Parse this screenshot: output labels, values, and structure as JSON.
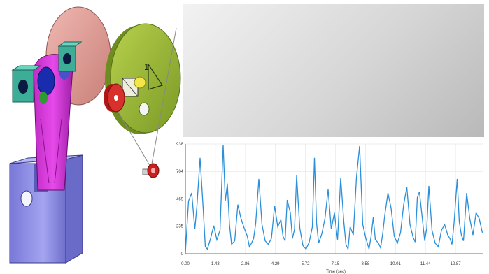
{
  "colors": {
    "line": "#2a8fd8",
    "disc_pink": "#e8a6a0",
    "disc_green": "#98b83a",
    "arm": "#d43ad8",
    "base": "#8e8ee8",
    "block": "#3cae98",
    "red": "#c8201e"
  },
  "mechanism": {
    "disc_label": "1"
  },
  "viewport": {},
  "chart_data": {
    "type": "line",
    "xlabel": "Time (sec)",
    "ylabel": "",
    "ylim": [
      0,
      938
    ],
    "xlim": [
      0,
      14.2
    ],
    "x_ticks": [
      "0.00",
      "1.43",
      "2.86",
      "4.29",
      "5.72",
      "7.15",
      "8.58",
      "10.01",
      "11.44",
      "12.87"
    ],
    "y_ticks": [
      "0",
      "235",
      "469",
      "704",
      "938"
    ],
    "grid": true,
    "series": [
      {
        "x": [
          0.0,
          0.15,
          0.3,
          0.45,
          0.55,
          0.7,
          0.85,
          0.95,
          1.05,
          1.2,
          1.35,
          1.5,
          1.65,
          1.8,
          1.9,
          2.0,
          2.1,
          2.2,
          2.35,
          2.5,
          2.65,
          2.8,
          2.95,
          3.05,
          3.15,
          3.25,
          3.35,
          3.5,
          3.65,
          3.8,
          3.95,
          4.1,
          4.25,
          4.4,
          4.55,
          4.65,
          4.75,
          4.85,
          5.0,
          5.1,
          5.2,
          5.3,
          5.45,
          5.6,
          5.75,
          5.9,
          6.05,
          6.15,
          6.25,
          6.35,
          6.5,
          6.65,
          6.8,
          6.95,
          7.1,
          7.25,
          7.4,
          7.55,
          7.65,
          7.75,
          7.85,
          8.0,
          8.15,
          8.3,
          8.45,
          8.6,
          8.75,
          8.85,
          8.95,
          9.05,
          9.2,
          9.3,
          9.4,
          9.5,
          9.65,
          9.8,
          9.95,
          10.1,
          10.25,
          10.4,
          10.55,
          10.7,
          10.85,
          10.95,
          11.05,
          11.15,
          11.3,
          11.4,
          11.5,
          11.6,
          11.75,
          11.9,
          12.05,
          12.2,
          12.35,
          12.5,
          12.6,
          12.7,
          12.8,
          12.95,
          13.05,
          13.15,
          13.25,
          13.4,
          13.55,
          13.7,
          13.85,
          14.0,
          14.15
        ],
        "values": [
          10,
          450,
          520,
          210,
          410,
          820,
          380,
          60,
          40,
          130,
          240,
          120,
          200,
          930,
          450,
          600,
          250,
          80,
          110,
          420,
          300,
          220,
          150,
          60,
          90,
          130,
          260,
          640,
          250,
          110,
          80,
          130,
          410,
          230,
          290,
          150,
          110,
          460,
          350,
          130,
          210,
          670,
          220,
          70,
          40,
          100,
          230,
          820,
          260,
          90,
          170,
          300,
          550,
          210,
          350,
          120,
          650,
          270,
          80,
          40,
          230,
          160,
          650,
          920,
          250,
          130,
          40,
          150,
          310,
          120,
          90,
          50,
          170,
          330,
          520,
          390,
          150,
          90,
          180,
          420,
          570,
          250,
          140,
          100,
          480,
          530,
          280,
          110,
          220,
          580,
          200,
          90,
          60,
          200,
          250,
          160,
          130,
          80,
          260,
          640,
          270,
          160,
          110,
          520,
          300,
          160,
          350,
          300,
          180
        ]
      }
    ]
  }
}
